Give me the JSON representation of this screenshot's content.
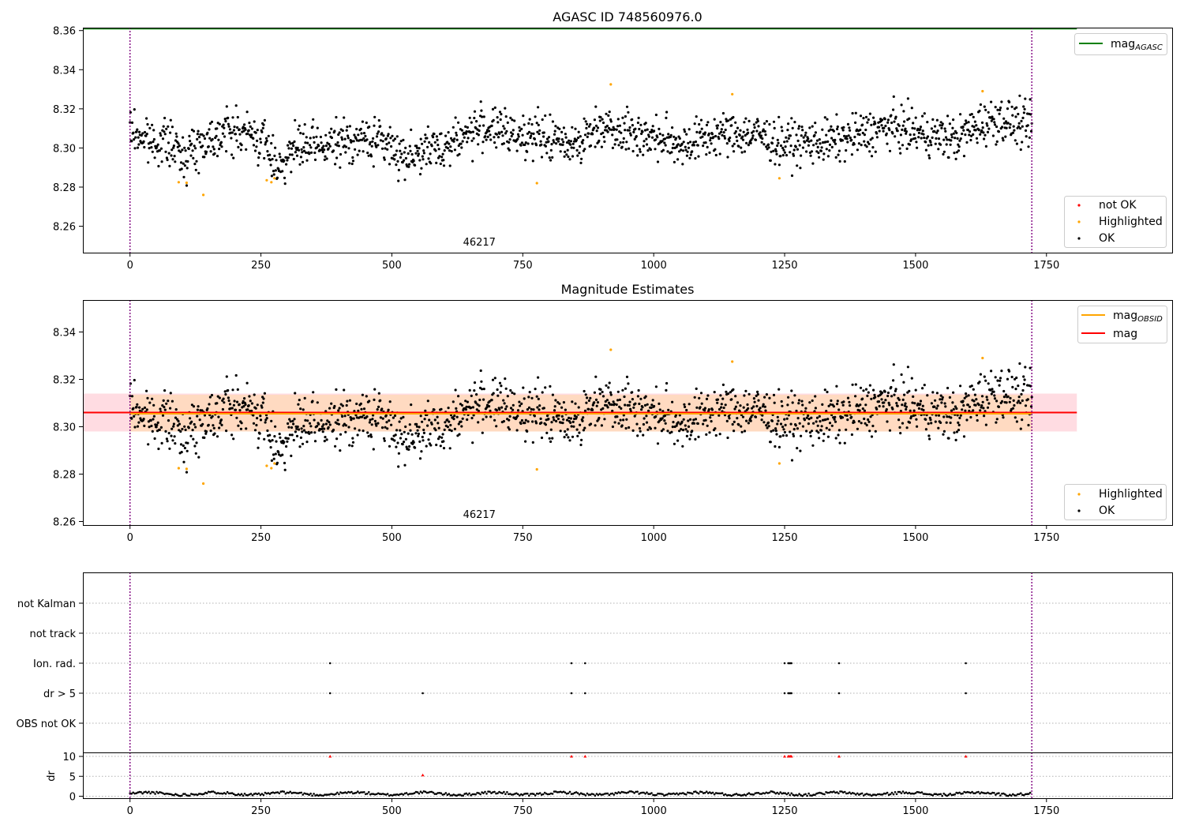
{
  "colors": {
    "ok": "#000000",
    "highlighted": "#ffa500",
    "not_ok": "#ff0000",
    "agasc_line": "#008000",
    "mag_line": "#ff0000",
    "obsid_line": "#ffa500",
    "band_pink": "#ffc0cb",
    "band_orange": "#ffdab9",
    "vline": "#800080"
  },
  "chart_data": [
    {
      "type": "scatter",
      "title": "AGASC ID 748560976.0",
      "xlim": [
        -90,
        1990
      ],
      "ylim": [
        8.2465,
        8.3615
      ],
      "xticks": [
        0,
        250,
        500,
        750,
        1000,
        1250,
        1500,
        1750
      ],
      "yticks": [
        8.26,
        8.28,
        8.3,
        8.32,
        8.34,
        8.36
      ],
      "ytick_labels": [
        "8.26",
        "8.28",
        "8.30",
        "8.32",
        "8.34",
        "8.36"
      ],
      "obsid_label": "46217",
      "obsid_label_x": 860,
      "obs_bounds": [
        0,
        1722
      ],
      "agasc_mag": 8.361,
      "series": [
        {
          "name": "OK",
          "key": "ok"
        },
        {
          "name": "Highlighted",
          "key": "highlighted"
        },
        {
          "name": "not OK",
          "key": "not_ok"
        }
      ],
      "line_legend": [
        {
          "name": "mag",
          "sub": "AGASC"
        }
      ],
      "legend_position": "top-right (lines), lower-right (points)"
    },
    {
      "type": "scatter",
      "title": "Magnitude Estimates",
      "xlim": [
        -90,
        1990
      ],
      "ylim": [
        8.2585,
        8.3535
      ],
      "xticks": [
        0,
        250,
        500,
        750,
        1000,
        1250,
        1500,
        1750
      ],
      "yticks": [
        8.26,
        8.28,
        8.3,
        8.32,
        8.34
      ],
      "ytick_labels": [
        "8.26",
        "8.28",
        "8.30",
        "8.32",
        "8.34"
      ],
      "obsid_label": "46217",
      "obsid_label_x": 860,
      "obs_bounds": [
        0,
        1722
      ],
      "mag": 8.306,
      "mag_obsid": 8.3055,
      "mag_band": [
        8.298,
        8.314
      ],
      "mag_obsid_band": [
        8.298,
        8.3135
      ],
      "band_x": [
        -90,
        1808
      ],
      "series": [
        {
          "name": "OK",
          "key": "ok"
        },
        {
          "name": "Highlighted",
          "key": "highlighted"
        }
      ],
      "line_legend": [
        {
          "name": "mag",
          "sub": "OBSID"
        },
        {
          "name": "mag",
          "sub": ""
        }
      ],
      "legend_position": "top-right (lines), lower-right (points)"
    },
    {
      "type": "scatter",
      "xlim": [
        -90,
        1990
      ],
      "categories": [
        "OBS not OK",
        "dr > 5",
        "Ion. rad.",
        "not track",
        "not Kalman"
      ],
      "flags": {
        "Ion. rad.": [
          382,
          843,
          869,
          1250,
          1257,
          1259,
          1261,
          1263,
          1354,
          1596
        ],
        "dr > 5": [
          382,
          559,
          843,
          869,
          1250,
          1257,
          1259,
          1261,
          1263,
          1354,
          1596
        ],
        "not track": [],
        "not Kalman": [],
        "OBS not OK": []
      },
      "obs_bounds": [
        0,
        1722
      ],
      "grid": true
    },
    {
      "type": "scatter",
      "ylabel": "dr",
      "xlim": [
        -90,
        1990
      ],
      "ylim": [
        -0.5,
        11
      ],
      "xticks": [
        0,
        250,
        500,
        750,
        1000,
        1250,
        1500,
        1750
      ],
      "yticks": [
        0,
        5,
        10
      ],
      "ytick_labels": [
        "0",
        "5",
        "10"
      ],
      "dr_clip": 10,
      "outliers": [
        {
          "x": 382,
          "y": 10
        },
        {
          "x": 559,
          "y": 5.3
        },
        {
          "x": 843,
          "y": 10
        },
        {
          "x": 869,
          "y": 10
        },
        {
          "x": 1250,
          "y": 10
        },
        {
          "x": 1257,
          "y": 10
        },
        {
          "x": 1259,
          "y": 10
        },
        {
          "x": 1261,
          "y": 10
        },
        {
          "x": 1263,
          "y": 10
        },
        {
          "x": 1354,
          "y": 10
        },
        {
          "x": 1596,
          "y": 10
        }
      ],
      "obs_bounds": [
        0,
        1722
      ],
      "grid": true
    }
  ],
  "panel_titles": {
    "top": "AGASC ID 748560976.0",
    "middle": "Magnitude Estimates"
  },
  "legend_labels": {
    "not_ok": "not OK",
    "highlighted": "Highlighted",
    "ok": "OK",
    "mag": "mag",
    "agasc_sub": "AGASC",
    "obsid_sub": "OBSID"
  },
  "flag_labels": [
    "not Kalman",
    "not track",
    "Ion. rad.",
    "dr > 5",
    "OBS not OK"
  ],
  "dr_label": "dr"
}
